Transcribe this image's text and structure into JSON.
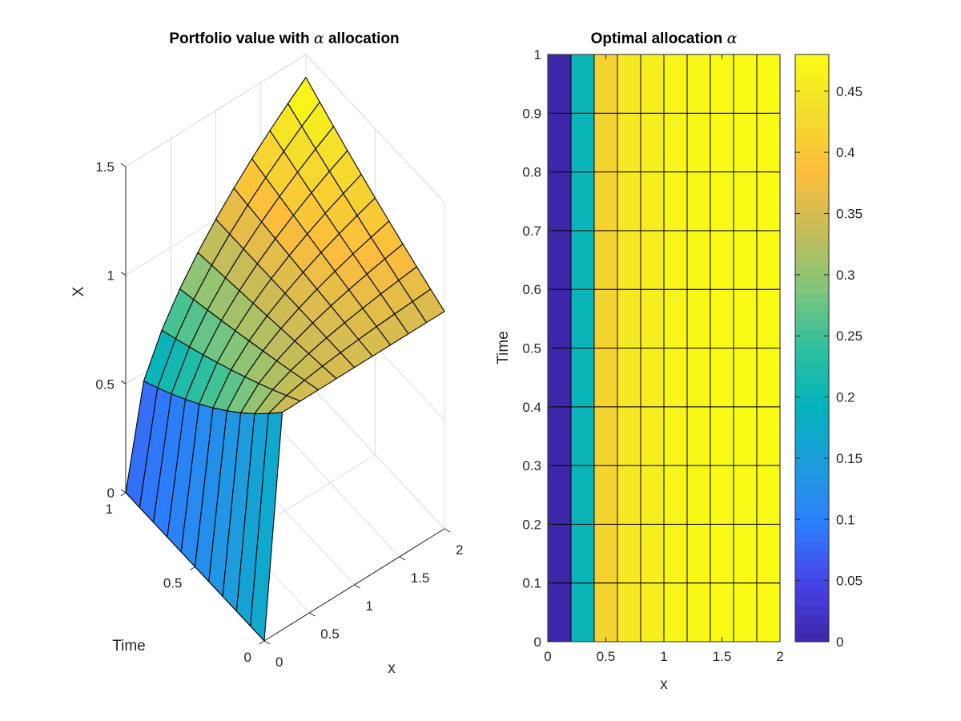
{
  "colormap": [
    "#3e26a8",
    "#4743e6",
    "#2d7efd",
    "#1e9cdd",
    "#03b3be",
    "#2dc09d",
    "#80c67c",
    "#c6bc59",
    "#fdbd3c",
    "#f4dc2c",
    "#f9fb15"
  ],
  "chart_data": [
    {
      "type": "surface",
      "title": "Portfolio value with",
      "title_symbol": "α",
      "title_suffix": "allocation",
      "xlabel": "x",
      "ylabel": "Time",
      "zlabel": "X",
      "x": [
        0,
        0.2,
        0.4,
        0.6,
        0.8,
        1.0,
        1.2,
        1.4,
        1.6,
        1.8,
        2.0
      ],
      "y": [
        0,
        0.1,
        0.2,
        0.3,
        0.4,
        0.5,
        0.6,
        0.7,
        0.8,
        0.9,
        1.0
      ],
      "z_model": "X(t, x) = x^(0.48*t)",
      "x_ticks": [
        "0",
        "0.5",
        "1",
        "1.5",
        "2"
      ],
      "y_ticks": [
        "0",
        "0.5",
        "1"
      ],
      "z_ticks": [
        "0",
        "0.5",
        "1",
        "1.5"
      ],
      "xlim": [
        0,
        2
      ],
      "ylim": [
        0,
        1
      ],
      "zlim": [
        0,
        1.5
      ],
      "grid": true
    },
    {
      "type": "heatmap",
      "title": "Optimal allocation",
      "title_symbol": "α",
      "xlabel": "x",
      "ylabel": "Time",
      "x_edges": [
        0,
        0.2,
        0.4,
        0.6,
        0.8,
        1.0,
        1.2,
        1.4,
        1.6,
        1.8,
        2.0
      ],
      "y_edges": [
        0,
        0.1,
        0.2,
        0.3,
        0.4,
        0.5,
        0.6,
        0.7,
        0.8,
        0.9,
        1.0
      ],
      "column_values": [
        0,
        0.2,
        0.42,
        0.45,
        0.46,
        0.47,
        0.475,
        0.48,
        0.48,
        0.48
      ],
      "x_ticks": [
        "0",
        "0.5",
        "1",
        "1.5",
        "2"
      ],
      "y_ticks": [
        "0",
        "0.1",
        "0.2",
        "0.3",
        "0.4",
        "0.5",
        "0.6",
        "0.7",
        "0.8",
        "0.9",
        "1"
      ],
      "xlim": [
        0,
        2
      ],
      "ylim": [
        0,
        1
      ],
      "colorbar": {
        "min": 0,
        "max": 0.48,
        "ticks": [
          0,
          0.05,
          0.1,
          0.15,
          0.2,
          0.25,
          0.3,
          0.35,
          0.4,
          0.45
        ],
        "tick_labels": [
          "0",
          "0.05",
          "0.1",
          "0.15",
          "0.2",
          "0.25",
          "0.3",
          "0.35",
          "0.4",
          "0.45"
        ]
      }
    }
  ]
}
